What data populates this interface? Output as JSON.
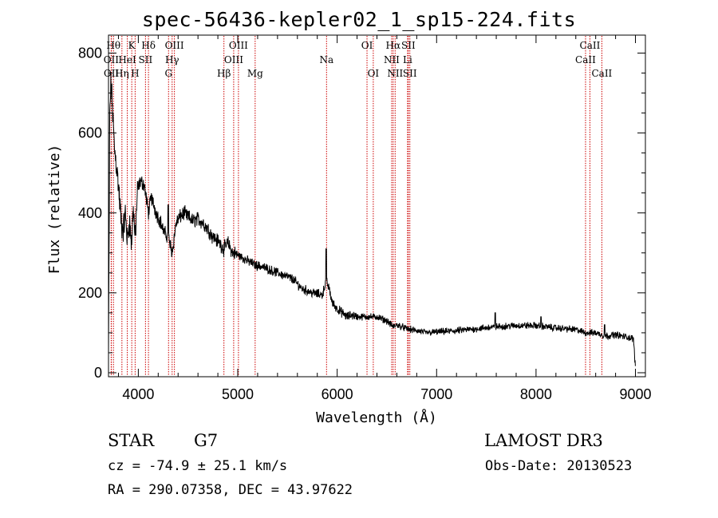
{
  "chart_data": {
    "type": "line",
    "title": "spec-56436-kepler02_1_sp15-224.fits",
    "xlabel": "Wavelength (Å)",
    "ylabel": "Flux (relative)",
    "xlim": [
      3700,
      9100
    ],
    "ylim": [
      -10,
      845
    ],
    "x_ticks": [
      4000,
      5000,
      6000,
      7000,
      8000,
      9000
    ],
    "y_ticks": [
      0,
      200,
      400,
      600,
      800
    ],
    "line_color": "#000000",
    "marker_color": "#cc0000",
    "spectrum_anchors": [
      [
        3700,
        40
      ],
      [
        3705,
        250
      ],
      [
        3712,
        640
      ],
      [
        3725,
        730
      ],
      [
        3740,
        660
      ],
      [
        3760,
        560
      ],
      [
        3780,
        520
      ],
      [
        3800,
        470
      ],
      [
        3830,
        370
      ],
      [
        3850,
        360
      ],
      [
        3870,
        400
      ],
      [
        3890,
        330
      ],
      [
        3910,
        380
      ],
      [
        3933,
        320
      ],
      [
        3950,
        420
      ],
      [
        3968,
        330
      ],
      [
        3990,
        450
      ],
      [
        4020,
        480
      ],
      [
        4060,
        470
      ],
      [
        4102,
        400
      ],
      [
        4130,
        440
      ],
      [
        4180,
        400
      ],
      [
        4220,
        380
      ],
      [
        4260,
        350
      ],
      [
        4300,
        340
      ],
      [
        4340,
        300
      ],
      [
        4380,
        375
      ],
      [
        4420,
        390
      ],
      [
        4460,
        400
      ],
      [
        4500,
        390
      ],
      [
        4550,
        380
      ],
      [
        4600,
        385
      ],
      [
        4650,
        375
      ],
      [
        4700,
        360
      ],
      [
        4750,
        340
      ],
      [
        4800,
        330
      ],
      [
        4861,
        310
      ],
      [
        4900,
        325
      ],
      [
        4950,
        300
      ],
      [
        5000,
        295
      ],
      [
        5100,
        280
      ],
      [
        5175,
        270
      ],
      [
        5250,
        265
      ],
      [
        5350,
        255
      ],
      [
        5450,
        245
      ],
      [
        5550,
        235
      ],
      [
        5650,
        210
      ],
      [
        5750,
        200
      ],
      [
        5850,
        195
      ],
      [
        5890,
        230
      ],
      [
        5920,
        210
      ],
      [
        5950,
        175
      ],
      [
        6000,
        160
      ],
      [
        6050,
        150
      ],
      [
        6100,
        140
      ],
      [
        6150,
        145
      ],
      [
        6200,
        140
      ],
      [
        6300,
        140
      ],
      [
        6400,
        140
      ],
      [
        6500,
        130
      ],
      [
        6563,
        115
      ],
      [
        6600,
        120
      ],
      [
        6700,
        110
      ],
      [
        6800,
        105
      ],
      [
        6900,
        100
      ],
      [
        7000,
        102
      ],
      [
        7200,
        105
      ],
      [
        7400,
        110
      ],
      [
        7600,
        115
      ],
      [
        7800,
        118
      ],
      [
        8000,
        118
      ],
      [
        8200,
        112
      ],
      [
        8400,
        108
      ],
      [
        8500,
        100
      ],
      [
        8600,
        100
      ],
      [
        8700,
        92
      ],
      [
        8800,
        95
      ],
      [
        8900,
        90
      ],
      [
        8980,
        85
      ],
      [
        9000,
        10
      ]
    ],
    "spikes": [
      [
        7590,
        150
      ],
      [
        8050,
        140
      ],
      [
        8690,
        120
      ],
      [
        5890,
        310
      ],
      [
        4300,
        420
      ]
    ],
    "lines": [
      {
        "label": "OII",
        "x": 3727,
        "row": 2
      },
      {
        "label": "Hθ",
        "x": 3750,
        "row": 1
      },
      {
        "label": "OII",
        "x": 3729,
        "row": 3
      },
      {
        "label": "Hη",
        "x": 3835,
        "row": 3
      },
      {
        "label": "HeI",
        "x": 3889,
        "row": 2
      },
      {
        "label": "K",
        "x": 3934,
        "row": 1
      },
      {
        "label": "H",
        "x": 3968,
        "row": 3
      },
      {
        "label": "SII",
        "x": 4072,
        "row": 2
      },
      {
        "label": "Hδ",
        "x": 4102,
        "row": 1
      },
      {
        "label": "OIII",
        "x": 4363,
        "row": 1
      },
      {
        "label": "Hγ",
        "x": 4340,
        "row": 2
      },
      {
        "label": "G",
        "x": 4304,
        "row": 3
      },
      {
        "label": "Hβ",
        "x": 4861,
        "row": 3
      },
      {
        "label": "OIII",
        "x": 5007,
        "row": 1
      },
      {
        "label": "OIII",
        "x": 4959,
        "row": 2
      },
      {
        "label": "Mg",
        "x": 5175,
        "row": 3
      },
      {
        "label": "Na",
        "x": 5893,
        "row": 2
      },
      {
        "label": "OI",
        "x": 6300,
        "row": 1
      },
      {
        "label": "OI",
        "x": 6363,
        "row": 3
      },
      {
        "label": "Hα",
        "x": 6563,
        "row": 1
      },
      {
        "label": "NII",
        "x": 6548,
        "row": 2
      },
      {
        "label": "NII",
        "x": 6583,
        "row": 3
      },
      {
        "label": "SII",
        "x": 6716,
        "row": 1
      },
      {
        "label": "Li",
        "x": 6708,
        "row": 2
      },
      {
        "label": "SII",
        "x": 6731,
        "row": 3
      },
      {
        "label": "CaII",
        "x": 8542,
        "row": 1
      },
      {
        "label": "CaII",
        "x": 8498,
        "row": 2
      },
      {
        "label": "CaII",
        "x": 8662,
        "row": 3
      }
    ]
  },
  "info": {
    "class": "STAR",
    "subclass": "G7",
    "survey": "LAMOST DR3",
    "cz": "cz = -74.9 ± 25.1 km/s",
    "obs_date": "Obs-Date: 20130523",
    "coords": "RA = 290.07358, DEC =  43.97622"
  }
}
